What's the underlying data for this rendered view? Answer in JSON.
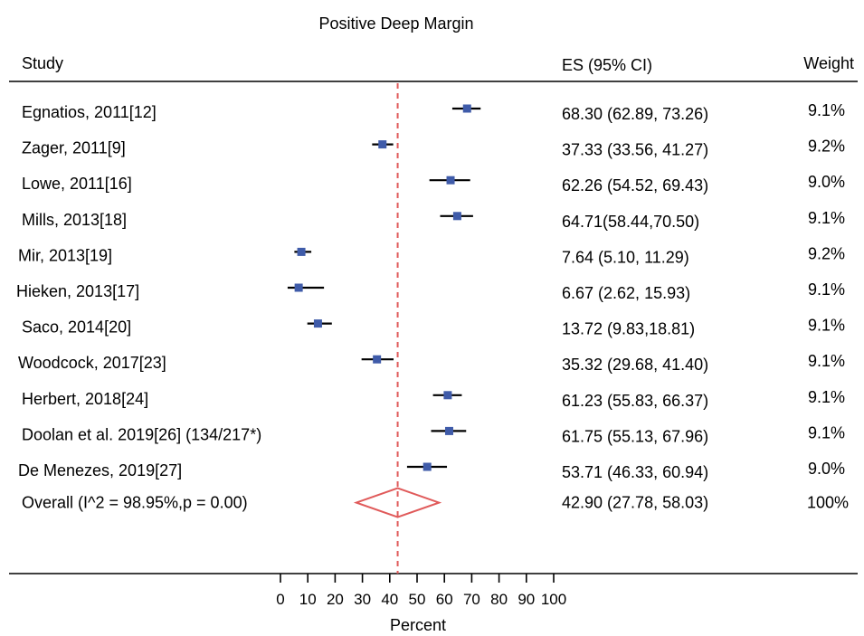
{
  "chart_data": {
    "type": "forest",
    "title": "Positive Deep Margin",
    "xlabel": "Percent",
    "xlim": [
      0,
      100
    ],
    "xticks": [
      0,
      10,
      20,
      30,
      40,
      50,
      60,
      70,
      80,
      90,
      100
    ],
    "reference_line": 42.9,
    "columns": {
      "study": "Study",
      "es": "ES (95% CI)",
      "weight": "Weight"
    },
    "studies": [
      {
        "label": "Egnatios, 2011[12]",
        "es": 68.3,
        "lo": 62.89,
        "hi": 73.26,
        "es_text": "68.30 (62.89, 73.26)",
        "weight": "9.1%"
      },
      {
        "label": "Zager, 2011[9]",
        "es": 37.33,
        "lo": 33.56,
        "hi": 41.27,
        "es_text": "37.33 (33.56, 41.27)",
        "weight": "9.2%"
      },
      {
        "label": "Lowe, 2011[16]",
        "es": 62.26,
        "lo": 54.52,
        "hi": 69.43,
        "es_text": "62.26 (54.52, 69.43)",
        "weight": "9.0%"
      },
      {
        "label": "Mills, 2013[18]",
        "es": 64.71,
        "lo": 58.44,
        "hi": 70.5,
        "es_text": "64.71(58.44,70.50)",
        "weight": "9.1%"
      },
      {
        "label": "Mir, 2013[19]",
        "es": 7.64,
        "lo": 5.1,
        "hi": 11.29,
        "es_text": "7.64 (5.10, 11.29)",
        "weight": "9.2%"
      },
      {
        "label": "Hieken, 2013[17]",
        "es": 6.67,
        "lo": 2.62,
        "hi": 15.93,
        "es_text": "6.67 (2.62, 15.93)",
        "weight": "9.1%"
      },
      {
        "label": "Saco, 2014[20]",
        "es": 13.72,
        "lo": 9.83,
        "hi": 18.81,
        "es_text": "13.72 (9.83,18.81)",
        "weight": "9.1%"
      },
      {
        "label": "Woodcock, 2017[23]",
        "es": 35.32,
        "lo": 29.68,
        "hi": 41.4,
        "es_text": "35.32 (29.68, 41.40)",
        "weight": "9.1%"
      },
      {
        "label": "Herbert, 2018[24]",
        "es": 61.23,
        "lo": 55.83,
        "hi": 66.37,
        "es_text": "61.23 (55.83, 66.37)",
        "weight": "9.1%"
      },
      {
        "label": "Doolan et al. 2019[26] (134/217*)",
        "es": 61.75,
        "lo": 55.13,
        "hi": 67.96,
        "es_text": "61.75 (55.13, 67.96)",
        "weight": "9.1%"
      },
      {
        "label": "De Menezes, 2019[27]",
        "es": 53.71,
        "lo": 46.33,
        "hi": 60.94,
        "es_text": "53.71 (46.33, 60.94)",
        "weight": "9.0%"
      }
    ],
    "overall": {
      "label": "Overall (I^2 = 98.95%,p = 0.00)",
      "es": 42.9,
      "lo": 27.78,
      "hi": 58.03,
      "es_text": "42.90 (27.78, 58.03)",
      "weight": "100%"
    },
    "colors": {
      "marker": "#3f5ba9",
      "diamond": "#e05a5a",
      "reference": "#e05a5a",
      "ci": "#000000"
    }
  }
}
